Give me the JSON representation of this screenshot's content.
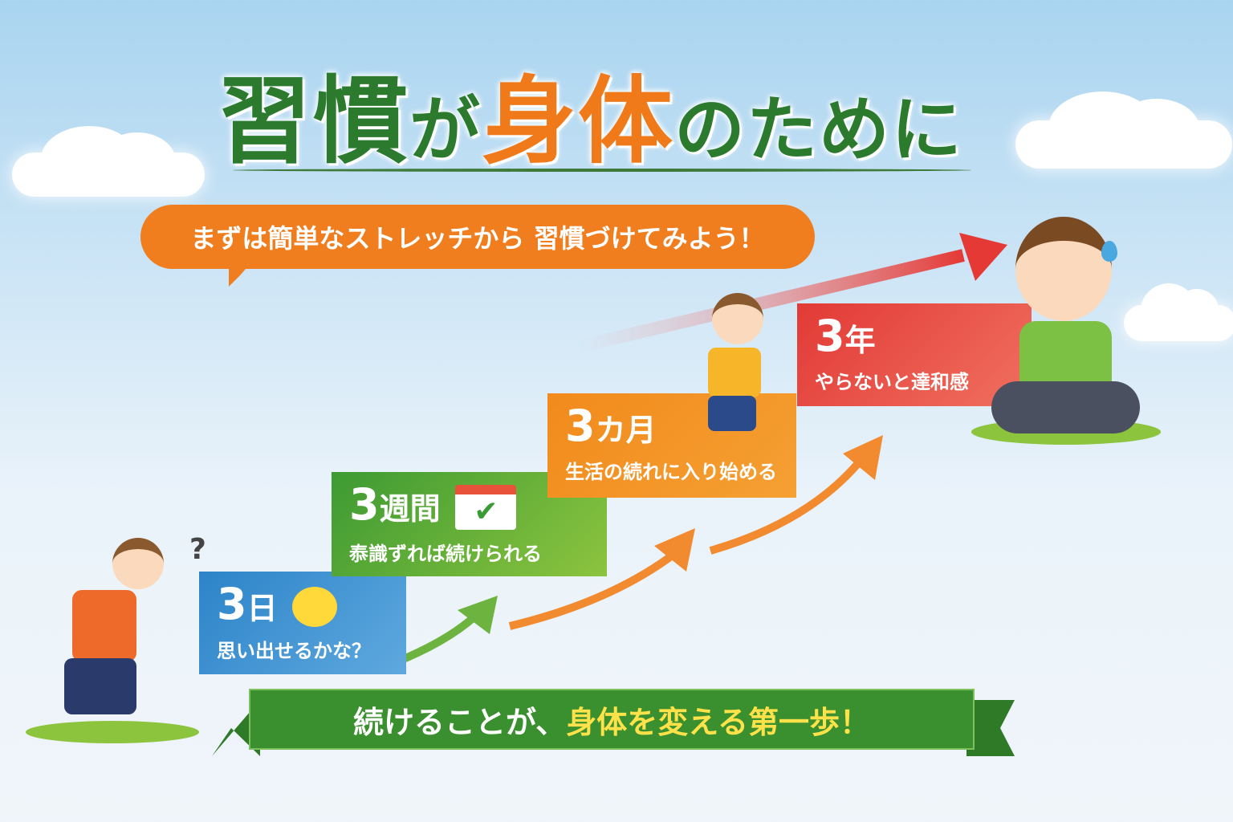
{
  "title": {
    "part1": "習慣",
    "part2": "が",
    "part3": "身体",
    "part4": "のために"
  },
  "bubble": "まずは簡単なストレッチから 習慣づけてみよう！",
  "steps": [
    {
      "num": "3",
      "unit": "日",
      "text": "思い出せるかな？",
      "color": "#2c84c8",
      "icon": "chick-icon"
    },
    {
      "num": "3",
      "unit": "週間",
      "text": "㤗識ずれば続けられる",
      "color": "#3d9a33",
      "icon": "calendar-check-icon"
    },
    {
      "num": "3",
      "unit": "カ月",
      "text": "生活の続れに入り始める",
      "color": "#f28a1c"
    },
    {
      "num": "3",
      "unit": "年",
      "text": "やらないと達和感",
      "color": "#e23a36"
    }
  ],
  "banner": {
    "part1": "続けることが、",
    "part2": "身体を変える第一歩！"
  },
  "question_mark": "?"
}
